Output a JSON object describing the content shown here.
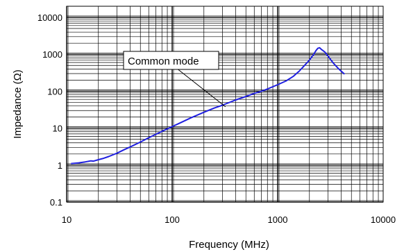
{
  "chart_data": {
    "type": "line",
    "title": "",
    "xlabel": "Frequency (MHz)",
    "ylabel": "Impedance (Ω)",
    "xscale": "log",
    "yscale": "log",
    "xlim": [
      10,
      10000
    ],
    "ylim": [
      0.1,
      20000
    ],
    "x_ticks": [
      10,
      100,
      1000,
      10000
    ],
    "x_tick_labels": [
      "10",
      "100",
      "1000",
      "10000"
    ],
    "y_ticks": [
      0.1,
      1,
      10,
      100,
      1000,
      10000
    ],
    "y_tick_labels": [
      "0.1",
      "1",
      "10",
      "100",
      "1000",
      "10000"
    ],
    "grid": true,
    "series": [
      {
        "name": "Common mode",
        "color": "#1f1fe0",
        "x": [
          11,
          13,
          15,
          17,
          18,
          20,
          22,
          25,
          30,
          35,
          40,
          50,
          60,
          70,
          80,
          100,
          120,
          150,
          200,
          250,
          300,
          400,
          500,
          600,
          700,
          800,
          1000,
          1200,
          1400,
          1600,
          1800,
          2000,
          2200,
          2300,
          2400,
          2500,
          2600,
          2700,
          2800,
          3000,
          3200,
          3400,
          3600,
          3800,
          4000,
          4200,
          4300
        ],
        "y": [
          1.1,
          1.15,
          1.22,
          1.3,
          1.28,
          1.4,
          1.5,
          1.7,
          2.1,
          2.6,
          3.1,
          4.2,
          5.5,
          6.8,
          8.2,
          11,
          14,
          19,
          27,
          35,
          42,
          58,
          72,
          87,
          100,
          115,
          150,
          190,
          250,
          350,
          500,
          700,
          1000,
          1250,
          1450,
          1500,
          1350,
          1250,
          1150,
          900,
          700,
          560,
          470,
          400,
          350,
          310,
          290
        ]
      }
    ],
    "annotations": [
      {
        "text": "Common mode",
        "target_x": 320,
        "target_y": 38
      }
    ]
  }
}
